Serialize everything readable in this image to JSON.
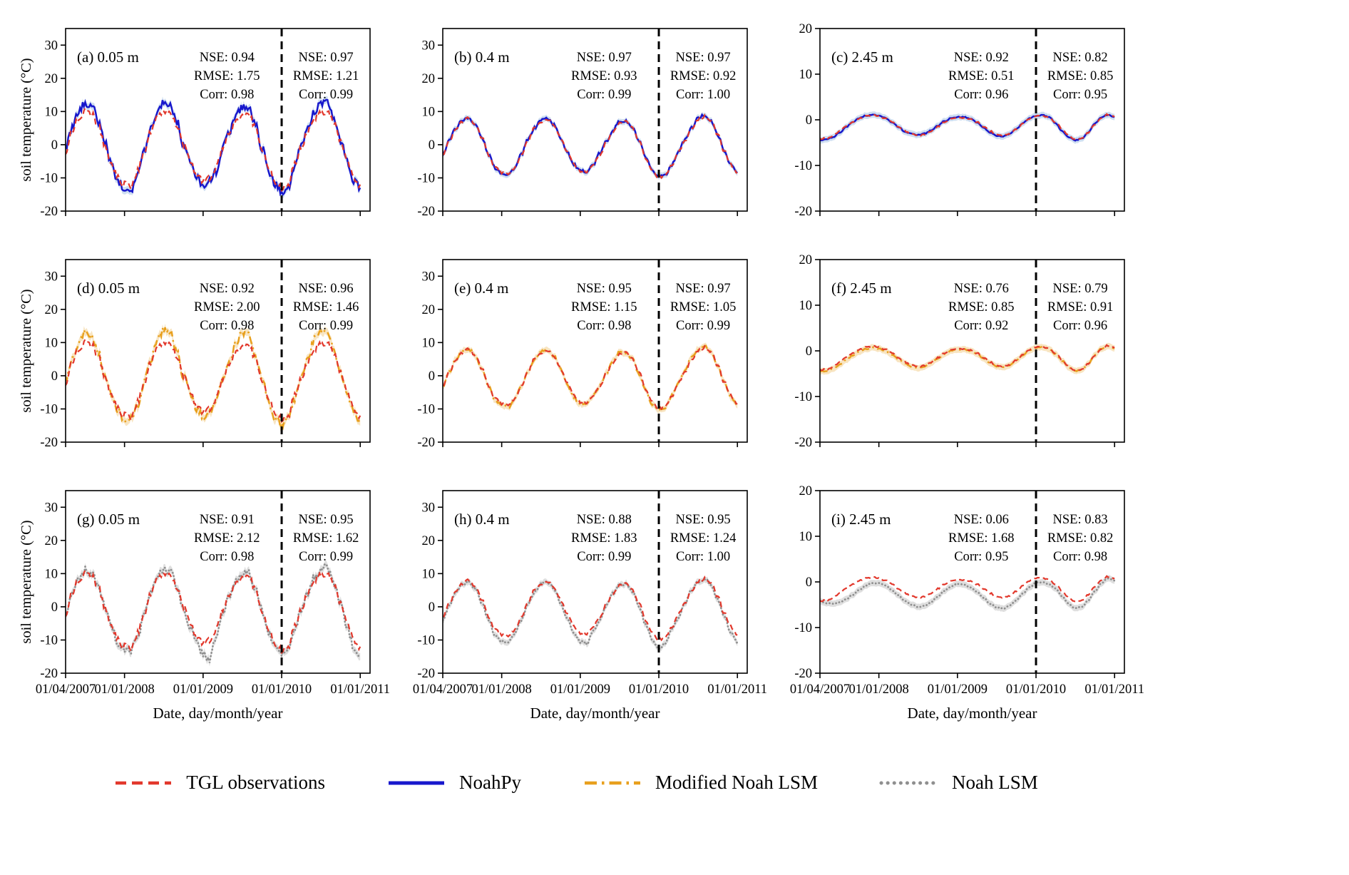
{
  "figure": {
    "xlabel": "Date, day/month/year",
    "ylabel": "soil temperature (°C)"
  },
  "legend": {
    "items": [
      {
        "label": "TGL observations",
        "color": "#e2382c",
        "style": "dashed"
      },
      {
        "label": "NoahPy",
        "color": "#1717cc",
        "style": "solid"
      },
      {
        "label": "Modified Noah LSM",
        "color": "#e8a01e",
        "style": "dashdot"
      },
      {
        "label": "Noah LSM",
        "color": "#8f8f8f",
        "style": "dotted"
      }
    ]
  },
  "chart_data": {
    "type": "line",
    "x_axis": {
      "label": "Date, day/month/year",
      "unit": "months since 01/04/2007",
      "tick_labels": [
        "01/04/2007",
        "01/01/2008",
        "01/01/2009",
        "01/01/2010",
        "01/01/2011"
      ],
      "tick_months": [
        0,
        9,
        21,
        33,
        45
      ],
      "domain_months": [
        0,
        46.5
      ],
      "divider_month": 33
    },
    "y_axis": {
      "label": "soil temperature (°C)"
    },
    "x_months": [
      0,
      1,
      2,
      3,
      4,
      5,
      6,
      7,
      8,
      9,
      10,
      11,
      12,
      13,
      14,
      15,
      16,
      17,
      18,
      19,
      20,
      21,
      22,
      23,
      24,
      25,
      26,
      27,
      28,
      29,
      30,
      31,
      32,
      33,
      34,
      35,
      36,
      37,
      38,
      39,
      40,
      41,
      42,
      43,
      44,
      45
    ],
    "series": {
      "obs_005": [
        -2,
        4,
        8,
        10,
        9.5,
        6,
        0,
        -6,
        -10,
        -12,
        -12.5,
        -8,
        -2,
        4,
        8,
        10,
        9.5,
        6,
        0,
        -5,
        -9,
        -11,
        -10,
        -7,
        -1,
        3,
        7,
        9,
        9,
        5,
        -1,
        -7,
        -11,
        -13,
        -12,
        -6,
        -1,
        4,
        8,
        10,
        10,
        7,
        1,
        -5,
        -10,
        -12
      ],
      "noahpy_005": [
        -1,
        5,
        10,
        12.5,
        12,
        7,
        1,
        -6,
        -11,
        -13,
        -13.5,
        -9,
        -2,
        5,
        10,
        12.5,
        12,
        7,
        0,
        -5,
        -10,
        -12,
        -11,
        -8,
        -1,
        4,
        9,
        11.5,
        11,
        6,
        -1,
        -8,
        -12,
        -14,
        -13,
        -7,
        0,
        5,
        10,
        12.5,
        12.5,
        8,
        1,
        -5,
        -11,
        -13
      ],
      "mod_005": [
        -1,
        5,
        10,
        13,
        12,
        7,
        0,
        -6,
        -11,
        -13,
        -13,
        -9,
        -2,
        5,
        11,
        14,
        13,
        7,
        0,
        -5,
        -10,
        -12,
        -11,
        -8,
        -1,
        4,
        10,
        13,
        12,
        6,
        -1,
        -8,
        -13,
        -15,
        -13,
        -7,
        0,
        5,
        11,
        14,
        13,
        8,
        1,
        -5,
        -11,
        -14
      ],
      "noah_005": [
        -2,
        4,
        9,
        11,
        10,
        6,
        0,
        -6,
        -11,
        -13,
        -13,
        -9,
        -2,
        4,
        9,
        11.5,
        11,
        6,
        -1,
        -6,
        -11,
        -14,
        -16,
        -9,
        -2,
        3,
        8,
        10.5,
        10,
        5,
        -1,
        -8,
        -12,
        -14,
        -13,
        -7,
        -1,
        4,
        9,
        11.5,
        12,
        7,
        1,
        -6,
        -12,
        -15
      ],
      "obs_04": [
        -3,
        1,
        5,
        7,
        8,
        6,
        2,
        -3,
        -7,
        -8.5,
        -9,
        -7,
        -3,
        1,
        5,
        7,
        7.5,
        6,
        2,
        -2,
        -6,
        -8,
        -8,
        -6,
        -3,
        1,
        4,
        6.5,
        7,
        5,
        1,
        -4,
        -8,
        -10,
        -9,
        -6,
        -2,
        1,
        5,
        7.5,
        8.5,
        7,
        3,
        -2,
        -6,
        -8.5
      ],
      "noahpy_04": [
        -3,
        1.5,
        5,
        7.5,
        8,
        6,
        2,
        -3,
        -7,
        -8.5,
        -9,
        -7,
        -3,
        1.5,
        5,
        7.5,
        8,
        6,
        2,
        -2,
        -6,
        -8,
        -8,
        -6,
        -2.5,
        1,
        4.5,
        7,
        7,
        5,
        1,
        -4,
        -8,
        -9.5,
        -9,
        -6,
        -2,
        1.5,
        5,
        8,
        9,
        7,
        3,
        -2,
        -6,
        -8.5
      ],
      "mod_04": [
        -3,
        1,
        5,
        7.5,
        8,
        6,
        2,
        -3,
        -7.5,
        -9,
        -9.5,
        -7,
        -3,
        1,
        5,
        7.5,
        8,
        6,
        2,
        -2.5,
        -6.5,
        -8.5,
        -8.5,
        -6,
        -3,
        1,
        4.5,
        7,
        7,
        5,
        0.5,
        -4.5,
        -8.5,
        -10.5,
        -9.5,
        -6,
        -2,
        1.5,
        5.5,
        8,
        9,
        7,
        3,
        -2,
        -6.5,
        -9
      ],
      "noah_04": [
        -4,
        0.5,
        4.5,
        7,
        7.5,
        5.5,
        1,
        -4,
        -8.5,
        -10.5,
        -11,
        -8,
        -4,
        0.5,
        4.5,
        7,
        7.5,
        5.5,
        1,
        -3.5,
        -8,
        -10.5,
        -11,
        -7,
        -4,
        0.5,
        4,
        6.5,
        7,
        4.5,
        0,
        -5.5,
        -10,
        -12.5,
        -11,
        -7,
        -3,
        1,
        5,
        7.5,
        8.5,
        6.5,
        2,
        -3,
        -8,
        -11
      ],
      "obs_245": [
        -4.2,
        -4,
        -3.5,
        -2.5,
        -1.5,
        -0.5,
        0.3,
        0.8,
        1,
        0.8,
        0.3,
        -0.5,
        -1.5,
        -2.5,
        -3.2,
        -3.5,
        -3.2,
        -2.5,
        -1.5,
        -0.5,
        0.2,
        0.5,
        0.5,
        0.2,
        -0.5,
        -1.5,
        -2.5,
        -3.2,
        -3.4,
        -3,
        -2,
        -0.8,
        0.2,
        0.8,
        0.9,
        0.5,
        -0.5,
        -2,
        -3.5,
        -4.3,
        -4,
        -2.8,
        -1,
        0.5,
        1.2,
        0.8
      ],
      "noahpy_245": [
        -4.5,
        -4.3,
        -3.8,
        -2.8,
        -1.6,
        -0.5,
        0.4,
        0.9,
        1.1,
        0.9,
        0.4,
        -0.5,
        -1.6,
        -2.6,
        -3.1,
        -3.3,
        -3,
        -2.3,
        -1.3,
        -0.3,
        0.3,
        0.6,
        0.6,
        0.3,
        -0.6,
        -1.8,
        -2.8,
        -3.5,
        -3.6,
        -3.1,
        -2,
        -0.7,
        0.3,
        0.9,
        1,
        0.6,
        -0.8,
        -2.5,
        -3.8,
        -4.5,
        -4.1,
        -2.7,
        -0.8,
        0.6,
        1.1,
        0.6
      ],
      "mod_245": [
        -4.5,
        -4.4,
        -4,
        -3,
        -2,
        -1,
        -0.2,
        0.4,
        0.7,
        0.5,
        0,
        -0.8,
        -1.8,
        -2.8,
        -3.5,
        -3.8,
        -3.4,
        -2.7,
        -1.7,
        -0.7,
        0,
        0.3,
        0.3,
        0,
        -0.7,
        -1.7,
        -2.7,
        -3.4,
        -3.6,
        -3.1,
        -2.1,
        -0.9,
        0.1,
        0.7,
        0.8,
        0.4,
        -0.7,
        -2.2,
        -3.6,
        -4.4,
        -4.1,
        -2.8,
        -0.9,
        0.5,
        1,
        0.6
      ],
      "noah_245": [
        -4.3,
        -4.6,
        -4.8,
        -4.5,
        -3.8,
        -2.8,
        -1.8,
        -0.8,
        -0.2,
        -0.3,
        -0.8,
        -1.8,
        -3,
        -4.2,
        -5,
        -5.5,
        -5.2,
        -4.4,
        -3.2,
        -2,
        -1,
        -0.4,
        -0.6,
        -1.2,
        -2.2,
        -3.5,
        -4.8,
        -5.6,
        -5.8,
        -5.2,
        -4,
        -2.5,
        -1.2,
        -0.2,
        0,
        -0.5,
        -1.5,
        -3.2,
        -4.8,
        -5.8,
        -5.5,
        -4,
        -2,
        -0.3,
        0.8,
        0.3
      ]
    },
    "panels": [
      {
        "id": "a",
        "label": "(a) 0.05 m",
        "depth": "0.05 m",
        "model": "NoahPy",
        "obs_series": "obs_005",
        "model_series": "noahpy_005",
        "model_color": "#1717cc",
        "model_style": "solid",
        "band_color": "#a8c4e6",
        "band_halfwidth": 1.1,
        "noise_obs": 1.0,
        "noise_model": 1.15,
        "ylim": [
          -20,
          35
        ],
        "yticks": [
          -20,
          -10,
          0,
          10,
          20,
          30
        ],
        "show_ylabel": true,
        "show_x_tick_labels": false,
        "stats_left": {
          "nse": "NSE: 0.94",
          "rmse": "RMSE: 1.75",
          "corr": "Corr: 0.98"
        },
        "stats_right": {
          "nse": "NSE: 0.97",
          "rmse": "RMSE: 1.21",
          "corr": "Corr: 0.99"
        }
      },
      {
        "id": "b",
        "label": "(b) 0.4 m",
        "depth": "0.4 m",
        "model": "NoahPy",
        "obs_series": "obs_04",
        "model_series": "noahpy_04",
        "model_color": "#1717cc",
        "model_style": "solid",
        "band_color": "#a8c4e6",
        "band_halfwidth": 0.9,
        "noise_obs": 0.45,
        "noise_model": 0.45,
        "ylim": [
          -20,
          35
        ],
        "yticks": [
          -20,
          -10,
          0,
          10,
          20,
          30
        ],
        "show_ylabel": false,
        "show_x_tick_labels": false,
        "stats_left": {
          "nse": "NSE: 0.97",
          "rmse": "RMSE: 0.93",
          "corr": "Corr: 0.99"
        },
        "stats_right": {
          "nse": "NSE: 0.97",
          "rmse": "RMSE: 0.92",
          "corr": "Corr: 1.00"
        }
      },
      {
        "id": "c",
        "label": "(c) 2.45 m",
        "depth": "2.45 m",
        "model": "NoahPy",
        "obs_series": "obs_245",
        "model_series": "noahpy_245",
        "model_color": "#1717cc",
        "model_style": "solid",
        "band_color": "#a8c4e6",
        "band_halfwidth": 0.7,
        "noise_obs": 0.15,
        "noise_model": 0.1,
        "ylim": [
          -20,
          20
        ],
        "yticks": [
          -20,
          -10,
          0,
          10,
          20
        ],
        "show_ylabel": false,
        "show_x_tick_labels": false,
        "stats_left": {
          "nse": "NSE: 0.92",
          "rmse": "RMSE: 0.51",
          "corr": "Corr: 0.96"
        },
        "stats_right": {
          "nse": "NSE: 0.82",
          "rmse": "RMSE: 0.85",
          "corr": "Corr: 0.95"
        }
      },
      {
        "id": "d",
        "label": "(d) 0.05 m",
        "depth": "0.05 m",
        "model": "Modified Noah LSM",
        "obs_series": "obs_005",
        "model_series": "mod_005",
        "model_color": "#e8a01e",
        "model_style": "dashdot",
        "band_color": "#f3cf8f",
        "band_halfwidth": 1.1,
        "noise_obs": 1.0,
        "noise_model": 1.15,
        "ylim": [
          -20,
          35
        ],
        "yticks": [
          -20,
          -10,
          0,
          10,
          20,
          30
        ],
        "show_ylabel": true,
        "show_x_tick_labels": false,
        "stats_left": {
          "nse": "NSE: 0.92",
          "rmse": "RMSE: 2.00",
          "corr": "Corr: 0.98"
        },
        "stats_right": {
          "nse": "NSE: 0.96",
          "rmse": "RMSE: 1.46",
          "corr": "Corr: 0.99"
        }
      },
      {
        "id": "e",
        "label": "(e) 0.4 m",
        "depth": "0.4 m",
        "model": "Modified Noah LSM",
        "obs_series": "obs_04",
        "model_series": "mod_04",
        "model_color": "#e8a01e",
        "model_style": "dashdot",
        "band_color": "#f3cf8f",
        "band_halfwidth": 0.9,
        "noise_obs": 0.45,
        "noise_model": 0.45,
        "ylim": [
          -20,
          35
        ],
        "yticks": [
          -20,
          -10,
          0,
          10,
          20,
          30
        ],
        "show_ylabel": false,
        "show_x_tick_labels": false,
        "stats_left": {
          "nse": "NSE: 0.95",
          "rmse": "RMSE: 1.15",
          "corr": "Corr: 0.98"
        },
        "stats_right": {
          "nse": "NSE: 0.97",
          "rmse": "RMSE: 1.05",
          "corr": "Corr: 0.99"
        }
      },
      {
        "id": "f",
        "label": "(f) 2.45 m",
        "depth": "2.45 m",
        "model": "Modified Noah LSM",
        "obs_series": "obs_245",
        "model_series": "mod_245",
        "model_color": "#e8a01e",
        "model_style": "dashdot",
        "band_color": "#f3cf8f",
        "band_halfwidth": 0.7,
        "noise_obs": 0.15,
        "noise_model": 0.1,
        "ylim": [
          -20,
          20
        ],
        "yticks": [
          -20,
          -10,
          0,
          10,
          20
        ],
        "show_ylabel": false,
        "show_x_tick_labels": false,
        "stats_left": {
          "nse": "NSE: 0.76",
          "rmse": "RMSE: 0.85",
          "corr": "Corr: 0.92"
        },
        "stats_right": {
          "nse": "NSE: 0.79",
          "rmse": "RMSE: 0.91",
          "corr": "Corr: 0.96"
        }
      },
      {
        "id": "g",
        "label": "(g) 0.05 m",
        "depth": "0.05 m",
        "model": "Noah LSM",
        "obs_series": "obs_005",
        "model_series": "noah_005",
        "model_color": "#8f8f8f",
        "model_style": "dotted",
        "band_color": "#c4c4c4",
        "band_halfwidth": 1.1,
        "noise_obs": 1.0,
        "noise_model": 1.15,
        "ylim": [
          -20,
          35
        ],
        "yticks": [
          -20,
          -10,
          0,
          10,
          20,
          30
        ],
        "show_ylabel": true,
        "show_x_tick_labels": true,
        "stats_left": {
          "nse": "NSE: 0.91",
          "rmse": "RMSE: 2.12",
          "corr": "Corr: 0.98"
        },
        "stats_right": {
          "nse": "NSE: 0.95",
          "rmse": "RMSE: 1.62",
          "corr": "Corr: 0.99"
        }
      },
      {
        "id": "h",
        "label": "(h) 0.4 m",
        "depth": "0.4 m",
        "model": "Noah LSM",
        "obs_series": "obs_04",
        "model_series": "noah_04",
        "model_color": "#8f8f8f",
        "model_style": "dotted",
        "band_color": "#c4c4c4",
        "band_halfwidth": 0.9,
        "noise_obs": 0.45,
        "noise_model": 0.45,
        "ylim": [
          -20,
          35
        ],
        "yticks": [
          -20,
          -10,
          0,
          10,
          20,
          30
        ],
        "show_ylabel": false,
        "show_x_tick_labels": true,
        "stats_left": {
          "nse": "NSE: 0.88",
          "rmse": "RMSE: 1.83",
          "corr": "Corr: 0.99"
        },
        "stats_right": {
          "nse": "NSE: 0.95",
          "rmse": "RMSE: 1.24",
          "corr": "Corr: 1.00"
        }
      },
      {
        "id": "i",
        "label": "(i) 2.45 m",
        "depth": "2.45 m",
        "model": "Noah LSM",
        "obs_series": "obs_245",
        "model_series": "noah_245",
        "model_color": "#8f8f8f",
        "model_style": "dotted",
        "band_color": "#c4c4c4",
        "band_halfwidth": 0.7,
        "noise_obs": 0.15,
        "noise_model": 0.1,
        "ylim": [
          -20,
          20
        ],
        "yticks": [
          -20,
          -10,
          0,
          10,
          20
        ],
        "show_ylabel": false,
        "show_x_tick_labels": true,
        "stats_left": {
          "nse": "NSE: 0.06",
          "rmse": "RMSE: 1.68",
          "corr": "Corr: 0.95"
        },
        "stats_right": {
          "nse": "NSE: 0.83",
          "rmse": "RMSE: 0.82",
          "corr": "Corr: 0.98"
        }
      }
    ]
  }
}
